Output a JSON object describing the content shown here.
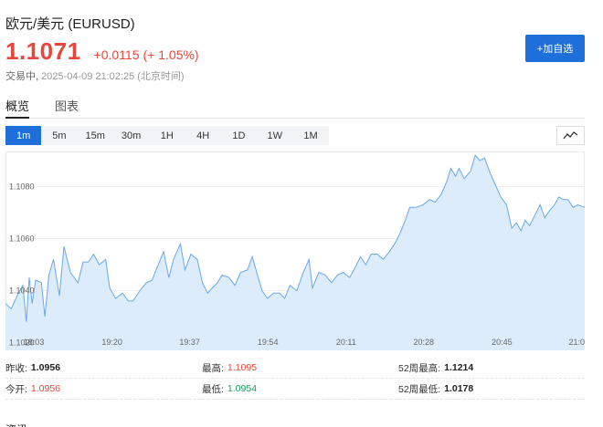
{
  "header": {
    "title": "欧元/美元  (EURUSD)",
    "price": "1.1071",
    "change": "+0.0115",
    "change_pct": "(+ 1.05%)",
    "status": "交易中,",
    "time": "2025-04-09 21:02:25",
    "timezone": "(北京时间)",
    "watch_label": "+加自选"
  },
  "tabs": [
    {
      "label": "概览",
      "active": true
    },
    {
      "label": "图表",
      "active": false
    }
  ],
  "periods": [
    {
      "label": "1m",
      "active": true
    },
    {
      "label": "5m"
    },
    {
      "label": "15m"
    },
    {
      "label": "30m"
    },
    {
      "label": "1H"
    },
    {
      "label": "4H"
    },
    {
      "label": "1D"
    },
    {
      "label": "1W"
    },
    {
      "label": "1M"
    }
  ],
  "chart_type_icon": "line-chart-icon",
  "colors": {
    "accent": "#1e6fd9",
    "up": "#e8463a",
    "down": "#1a9e5f",
    "line": "#6aa8e6",
    "fill": "#dcecfb"
  },
  "chart_data": {
    "type": "area",
    "x_tick_labels": [
      "18:03",
      "19:20",
      "19:37",
      "19:54",
      "20:11",
      "20:28",
      "20:45",
      "21:0"
    ],
    "y_tick_labels": [
      "1.1080",
      "1.1060",
      "1.1040",
      "1.1020"
    ],
    "y_ticks": [
      1.108,
      1.106,
      1.104,
      1.102
    ],
    "ylim": [
      1.1017,
      1.10935
    ],
    "x_range": [
      0,
      100
    ],
    "x_tick_positions": [
      4.9,
      18.4,
      31.8,
      45.3,
      58.8,
      72.2,
      85.7,
      99.2
    ],
    "points": [
      [
        0,
        1.1035
      ],
      [
        1.0,
        1.1033
      ],
      [
        2.0,
        1.1038
      ],
      [
        3.0,
        1.1042
      ],
      [
        3.6,
        1.1028
      ],
      [
        4.1,
        1.1045
      ],
      [
        4.6,
        1.1035
      ],
      [
        5.2,
        1.1044
      ],
      [
        6.2,
        1.1043
      ],
      [
        6.8,
        1.103
      ],
      [
        7.5,
        1.1046
      ],
      [
        8.3,
        1.1052
      ],
      [
        9.3,
        1.1038
      ],
      [
        10.1,
        1.1057
      ],
      [
        11.2,
        1.1047
      ],
      [
        12.5,
        1.1043
      ],
      [
        13.4,
        1.1051
      ],
      [
        14.3,
        1.1051
      ],
      [
        15.2,
        1.1054
      ],
      [
        16.2,
        1.105
      ],
      [
        17.3,
        1.1052
      ],
      [
        18.0,
        1.1041
      ],
      [
        19.0,
        1.1037
      ],
      [
        20.2,
        1.1039
      ],
      [
        21.2,
        1.1036
      ],
      [
        22.0,
        1.1036
      ],
      [
        23.2,
        1.104
      ],
      [
        24.3,
        1.1043
      ],
      [
        25.3,
        1.1044
      ],
      [
        26.2,
        1.1049
      ],
      [
        27.3,
        1.1055
      ],
      [
        28.2,
        1.1045
      ],
      [
        29.0,
        1.1052
      ],
      [
        30.2,
        1.1058
      ],
      [
        31.0,
        1.1048
      ],
      [
        32.0,
        1.1054
      ],
      [
        33.1,
        1.1052
      ],
      [
        34.0,
        1.1043
      ],
      [
        34.9,
        1.1039
      ],
      [
        35.7,
        1.1041
      ],
      [
        36.6,
        1.1043
      ],
      [
        37.4,
        1.1046
      ],
      [
        38.6,
        1.1045
      ],
      [
        39.6,
        1.1042
      ],
      [
        40.6,
        1.1047
      ],
      [
        41.8,
        1.1048
      ],
      [
        42.6,
        1.1053
      ],
      [
        43.5,
        1.1046
      ],
      [
        44.3,
        1.104
      ],
      [
        45.2,
        1.1037
      ],
      [
        46.3,
        1.1039
      ],
      [
        47.3,
        1.1039
      ],
      [
        48.2,
        1.1037
      ],
      [
        49.1,
        1.1042
      ],
      [
        50.3,
        1.104
      ],
      [
        51.4,
        1.1047
      ],
      [
        52.4,
        1.1052
      ],
      [
        53.0,
        1.1041
      ],
      [
        54.1,
        1.1047
      ],
      [
        55.2,
        1.1046
      ],
      [
        56.3,
        1.1043
      ],
      [
        57.3,
        1.1046
      ],
      [
        58.3,
        1.1047
      ],
      [
        59.4,
        1.1045
      ],
      [
        60.4,
        1.1049
      ],
      [
        61.3,
        1.1053
      ],
      [
        62.2,
        1.105
      ],
      [
        63.1,
        1.1054
      ],
      [
        64.2,
        1.1054
      ],
      [
        65.2,
        1.1052
      ],
      [
        66.3,
        1.1055
      ],
      [
        67.2,
        1.1058
      ],
      [
        68.1,
        1.1062
      ],
      [
        69.0,
        1.1067
      ],
      [
        69.8,
        1.1072
      ],
      [
        70.9,
        1.1072
      ],
      [
        72.1,
        1.1073
      ],
      [
        73.2,
        1.1075
      ],
      [
        74.2,
        1.1074
      ],
      [
        75.2,
        1.1077
      ],
      [
        76.2,
        1.1082
      ],
      [
        76.9,
        1.1087
      ],
      [
        77.7,
        1.1084
      ],
      [
        78.3,
        1.1087
      ],
      [
        79.2,
        1.1083
      ],
      [
        80.3,
        1.1086
      ],
      [
        81.1,
        1.1092
      ],
      [
        81.9,
        1.109
      ],
      [
        82.7,
        1.1091
      ],
      [
        83.7,
        1.1085
      ],
      [
        84.7,
        1.108
      ],
      [
        85.5,
        1.1076
      ],
      [
        86.5,
        1.1073
      ],
      [
        87.4,
        1.1064
      ],
      [
        88.2,
        1.1066
      ],
      [
        89.0,
        1.1063
      ],
      [
        89.7,
        1.1067
      ],
      [
        90.5,
        1.1065
      ],
      [
        91.4,
        1.1069
      ],
      [
        92.3,
        1.1073
      ],
      [
        93.1,
        1.1068
      ],
      [
        94.0,
        1.1071
      ],
      [
        94.8,
        1.1073
      ],
      [
        95.5,
        1.1076
      ],
      [
        96.3,
        1.1075
      ],
      [
        97.1,
        1.1075
      ],
      [
        98.0,
        1.1072
      ],
      [
        98.8,
        1.1073
      ],
      [
        100,
        1.1072
      ]
    ],
    "grid": true
  },
  "stats": {
    "prev_close_label": "昨收:",
    "prev_close": "1.0956",
    "high_label": "最高:",
    "high": "1.1095",
    "high52_label": "52周最高:",
    "high52": "1.1214",
    "open_label": "今开:",
    "open": "1.0956",
    "low_label": "最低:",
    "low": "1.0954",
    "low52_label": "52周最低:",
    "low52": "1.0178"
  },
  "cut_text": "资讯"
}
